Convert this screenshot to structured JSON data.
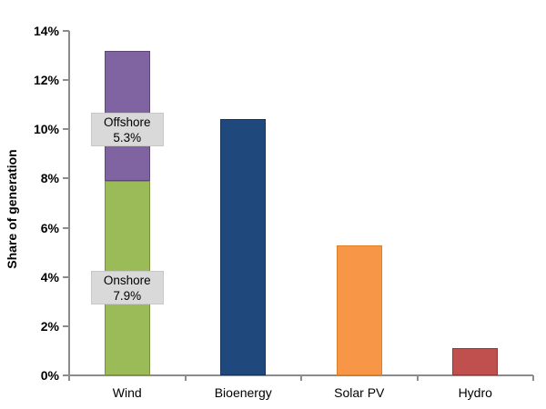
{
  "figure": {
    "background": "#FFFFFF",
    "axis_color": "#8C8C8C",
    "callout_bg": "#D9D9D9"
  },
  "chart_data": {
    "type": "bar",
    "title": "",
    "xlabel": "",
    "ylabel": "Share of generation",
    "ylim": [
      0,
      14
    ],
    "ytick_step": 2,
    "ytick_labels": [
      "0%",
      "2%",
      "4%",
      "6%",
      "8%",
      "10%",
      "12%",
      "14%"
    ],
    "grid": false,
    "legend_position": "none",
    "categories": [
      "Wind",
      "Bioenergy",
      "Solar PV",
      "Hydro"
    ],
    "bars": [
      {
        "category": "Wind",
        "total": 13.2,
        "segments": [
          {
            "name": "Onshore",
            "value": 7.9,
            "color": "#9BBB59",
            "border_color": "#78923C"
          },
          {
            "name": "Offshore",
            "value": 5.3,
            "color": "#8064A2",
            "border_color": "#5C4776"
          }
        ],
        "callouts": [
          {
            "line1": "Offshore",
            "line2": "5.3%",
            "center_at_value": 10.0
          },
          {
            "line1": "Onshore",
            "line2": "7.9%",
            "center_at_value": 3.55
          }
        ]
      },
      {
        "category": "Bioenergy",
        "total": 10.4,
        "segments": [
          {
            "name": "Bioenergy",
            "value": 10.4,
            "color": "#1F497D",
            "border_color": "#16355C"
          }
        ],
        "callouts": []
      },
      {
        "category": "Solar PV",
        "total": 5.3,
        "segments": [
          {
            "name": "Solar PV",
            "value": 5.3,
            "color": "#F79646",
            "border_color": "#DD7E28"
          }
        ],
        "callouts": []
      },
      {
        "category": "Hydro",
        "total": 1.1,
        "segments": [
          {
            "name": "Hydro",
            "value": 1.1,
            "color": "#C0504D",
            "border_color": "#953735"
          }
        ],
        "callouts": []
      }
    ]
  }
}
